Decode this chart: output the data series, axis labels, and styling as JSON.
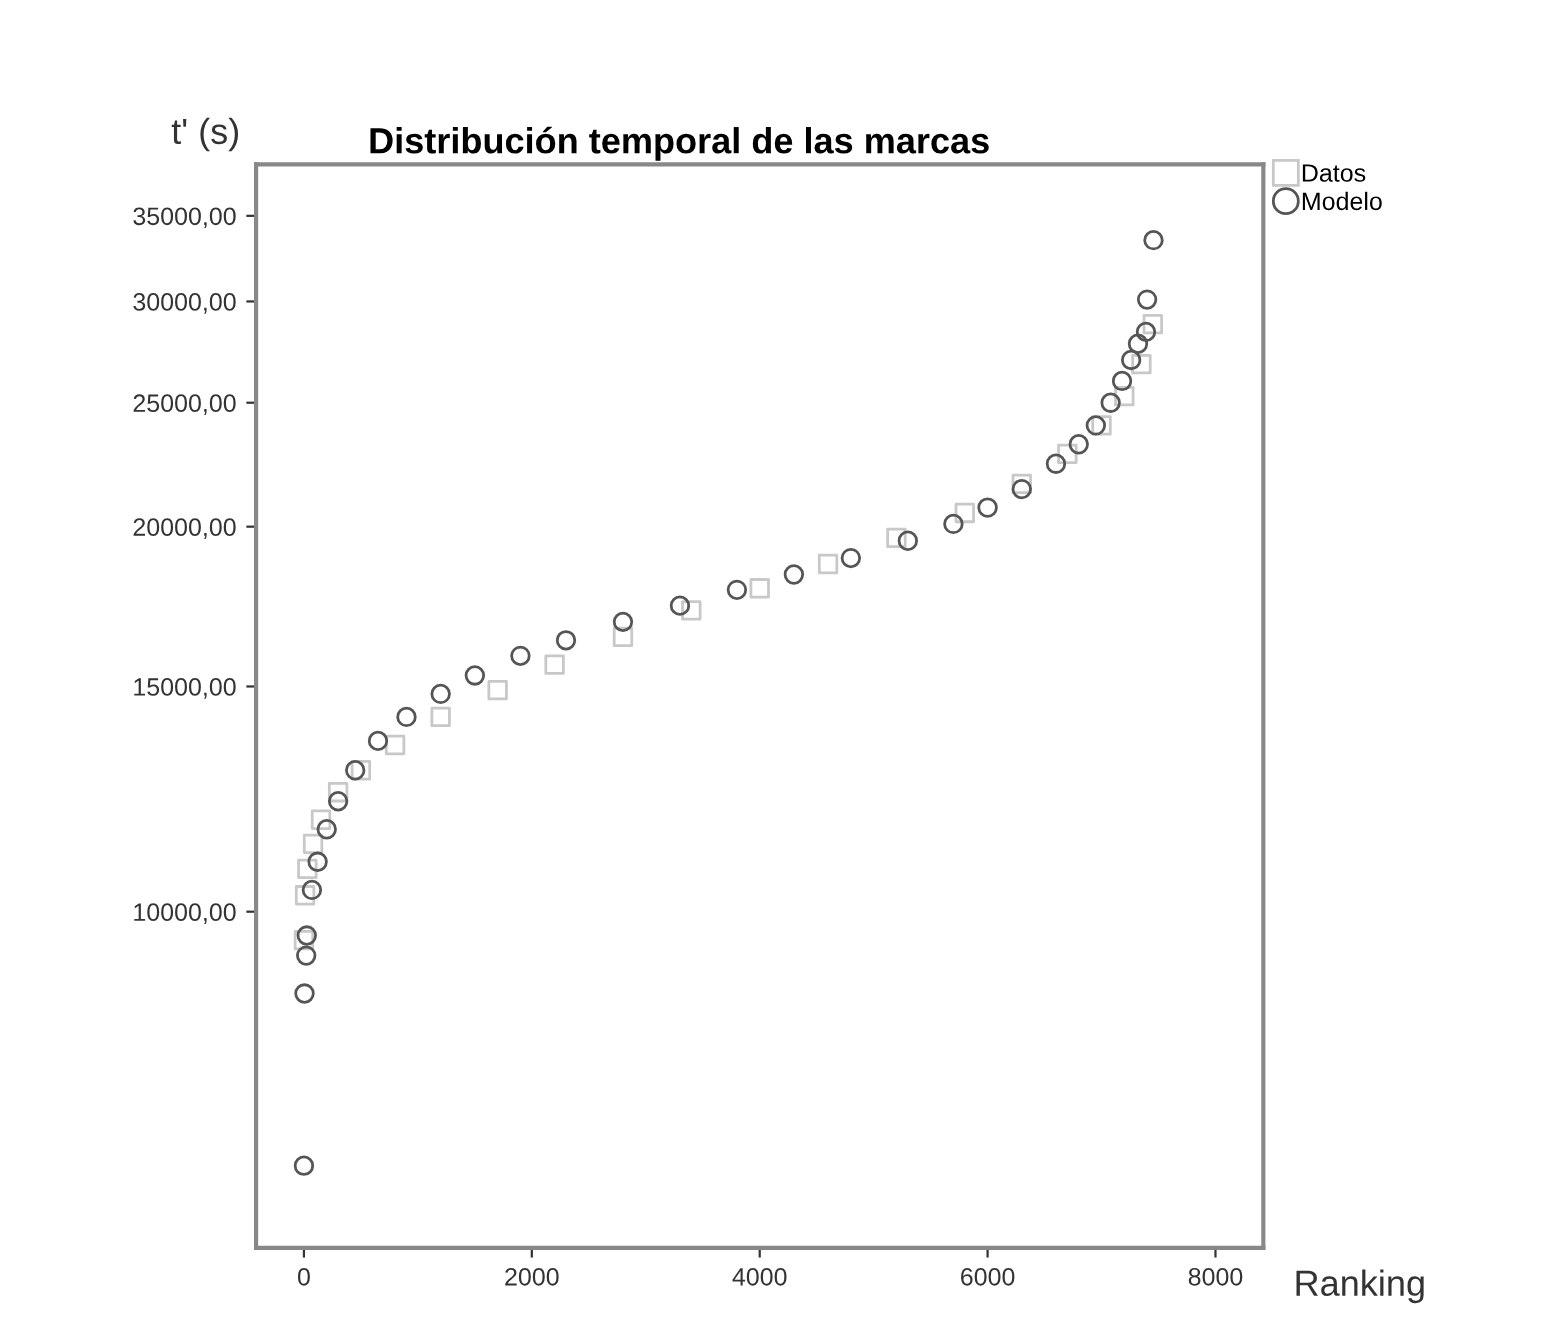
{
  "chart_data": {
    "type": "scatter",
    "title": "Distribución temporal de las marcas",
    "xlabel": "Ranking",
    "ylabel": "t' (s)",
    "log": "y",
    "grid": false,
    "legend": "top right",
    "xlim": [
      -420,
      8420
    ],
    "xticks": [
      0,
      2000,
      4000,
      6000,
      8000
    ],
    "ylim": [
      5460,
      38400
    ],
    "yticks": [
      {
        "value": 10000,
        "label": "10000,00"
      },
      {
        "value": 15000,
        "label": "15000,00"
      },
      {
        "value": 20000,
        "label": "20000,00"
      },
      {
        "value": 25000,
        "label": "25000,00"
      },
      {
        "value": 30000,
        "label": "30000,00"
      },
      {
        "value": 35000,
        "label": "35000,00"
      }
    ],
    "series": [
      {
        "name": "Datos",
        "color": "#c8c8c8",
        "marker": "square",
        "x": [
          0,
          10,
          30,
          80,
          150,
          300,
          500,
          800,
          1200,
          1700,
          2200,
          2800,
          3400,
          4000,
          4600,
          5200,
          5800,
          6300,
          6700,
          7000,
          7200,
          7350,
          7450
        ],
        "values": [
          9500,
          10300,
          10800,
          11300,
          11800,
          12400,
          12900,
          13500,
          14200,
          14900,
          15600,
          16400,
          17200,
          17900,
          18700,
          19600,
          20500,
          21600,
          22800,
          24000,
          25300,
          26800,
          28800
        ]
      },
      {
        "name": "Modelo",
        "color": "#555555",
        "marker": "circle",
        "x": [
          0,
          5,
          20,
          25,
          70,
          120,
          200,
          300,
          450,
          650,
          900,
          1200,
          1500,
          1900,
          2300,
          2800,
          3300,
          3800,
          4300,
          4800,
          5300,
          5700,
          6000,
          6300,
          6600,
          6800,
          6950,
          7080,
          7180,
          7260,
          7320,
          7390,
          7400,
          7456
        ],
        "values": [
          6330,
          8630,
          9240,
          9580,
          10400,
          10940,
          11600,
          12200,
          12900,
          13600,
          14200,
          14800,
          15300,
          15850,
          16300,
          16850,
          17350,
          17850,
          18350,
          18900,
          19500,
          20100,
          20700,
          21400,
          22400,
          23200,
          24000,
          25000,
          26000,
          27000,
          27800,
          28400,
          30100,
          33500
        ]
      }
    ]
  }
}
